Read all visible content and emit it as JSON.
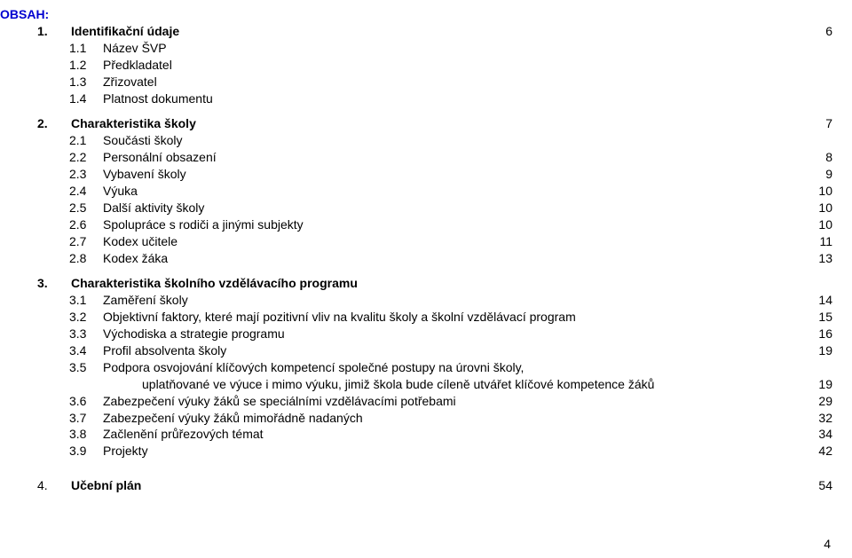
{
  "title": "OBSAH:",
  "sections": {
    "s1": {
      "num": "1.",
      "label": "Identifikační údaje",
      "page": "6",
      "items": [
        {
          "num": "1.1",
          "label": "Název ŠVP"
        },
        {
          "num": "1.2",
          "label": "Předkladatel"
        },
        {
          "num": "1.3",
          "label": "Zřizovatel"
        },
        {
          "num": "1.4",
          "label": "Platnost dokumentu"
        }
      ]
    },
    "s2": {
      "num": "2.",
      "label": "Charakteristika školy",
      "page": "7",
      "items": [
        {
          "num": "2.1",
          "label": "Součásti školy"
        },
        {
          "num": "2.2",
          "label": "Personální obsazení",
          "page": "8"
        },
        {
          "num": "2.3",
          "label": "Vybavení školy",
          "page": "9"
        },
        {
          "num": "2.4",
          "label": "Výuka",
          "page": "10"
        },
        {
          "num": "2.5",
          "label": "Další aktivity školy",
          "page": "10"
        },
        {
          "num": "2.6",
          "label": "Spolupráce s rodiči a jinými subjekty",
          "page": "10"
        },
        {
          "num": "2.7",
          "label": "Kodex  učitele",
          "page": "11"
        },
        {
          "num": "2.8",
          "label": "Kodex žáka",
          "page": "13"
        }
      ]
    },
    "s3": {
      "num": "3.",
      "label": "Charakteristika školního vzdělávacího programu",
      "items": [
        {
          "num": "3.1",
          "label": "Zaměření školy",
          "page": "14"
        },
        {
          "num": "3.2",
          "label": "Objektivní faktory, které mají pozitivní vliv na kvalitu školy a školní vzdělávací program",
          "page": "15"
        },
        {
          "num": "3.3",
          "label": "Východiska a strategie programu",
          "page": "16"
        },
        {
          "num": "3.4",
          "label": "Profil absolventa školy",
          "page": "19"
        },
        {
          "num": "3.5",
          "label": "Podpora osvojování klíčových kompetencí společné postupy na úrovni školy,",
          "cont": "uplatňované ve výuce i mimo výuku, jimiž škola bude cíleně utvářet klíčové kompetence žáků",
          "page": "19"
        },
        {
          "num": "3.6",
          "label": "Zabezpečení výuky žáků se speciálními vzdělávacími potřebami",
          "page": "29"
        },
        {
          "num": "3.7",
          "label": "Zabezpečení výuky žáků mimořádně nadaných",
          "page": "32"
        },
        {
          "num": "3.8",
          "label": "Začlenění průřezových témat",
          "page": "34"
        },
        {
          "num": "3.9",
          "label": "Projekty",
          "page": "42"
        }
      ]
    },
    "s4": {
      "num": "4.",
      "label": "Učební plán",
      "page": "54"
    }
  },
  "footerPage": "4"
}
